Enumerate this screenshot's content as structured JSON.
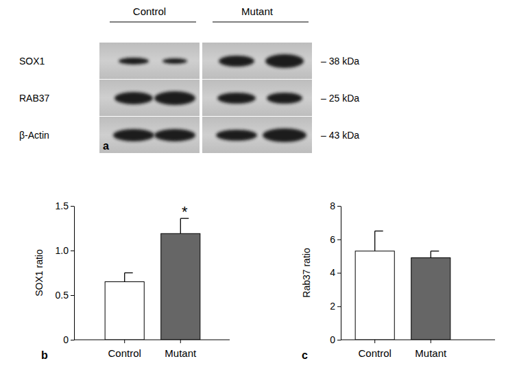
{
  "blot": {
    "panel_label": "a",
    "groups": [
      "Control",
      "Mutant"
    ],
    "rows": [
      {
        "label": "SOX1",
        "size": "– 38 kDa"
      },
      {
        "label": "RAB37",
        "size": "– 25 kDa"
      },
      {
        "label": "β-Actin",
        "size": "– 43 kDa"
      }
    ]
  },
  "chart_data": [
    {
      "type": "bar",
      "panel_label": "b",
      "y_label": "SOX1 ratio",
      "categories": [
        "Control",
        "Mutant"
      ],
      "values": [
        0.65,
        1.19
      ],
      "errors": [
        0.1,
        0.17
      ],
      "colors": [
        "#ffffff",
        "#666666"
      ],
      "ylim": [
        0,
        1.5
      ],
      "yticks": [
        0,
        0.5,
        {
          "value": 1,
          "label": "1.0"
        },
        1.5
      ],
      "annotations": [
        {
          "text": "*",
          "category": "Mutant"
        }
      ]
    },
    {
      "type": "bar",
      "panel_label": "c",
      "y_label": "Rab37 ratio",
      "categories": [
        "Control",
        "Mutant"
      ],
      "values": [
        5.3,
        4.9
      ],
      "errors": [
        1.2,
        0.4
      ],
      "colors": [
        "#ffffff",
        "#666666"
      ],
      "ylim": [
        0,
        8
      ],
      "yticks": [
        0,
        2,
        4,
        6,
        8
      ]
    }
  ]
}
